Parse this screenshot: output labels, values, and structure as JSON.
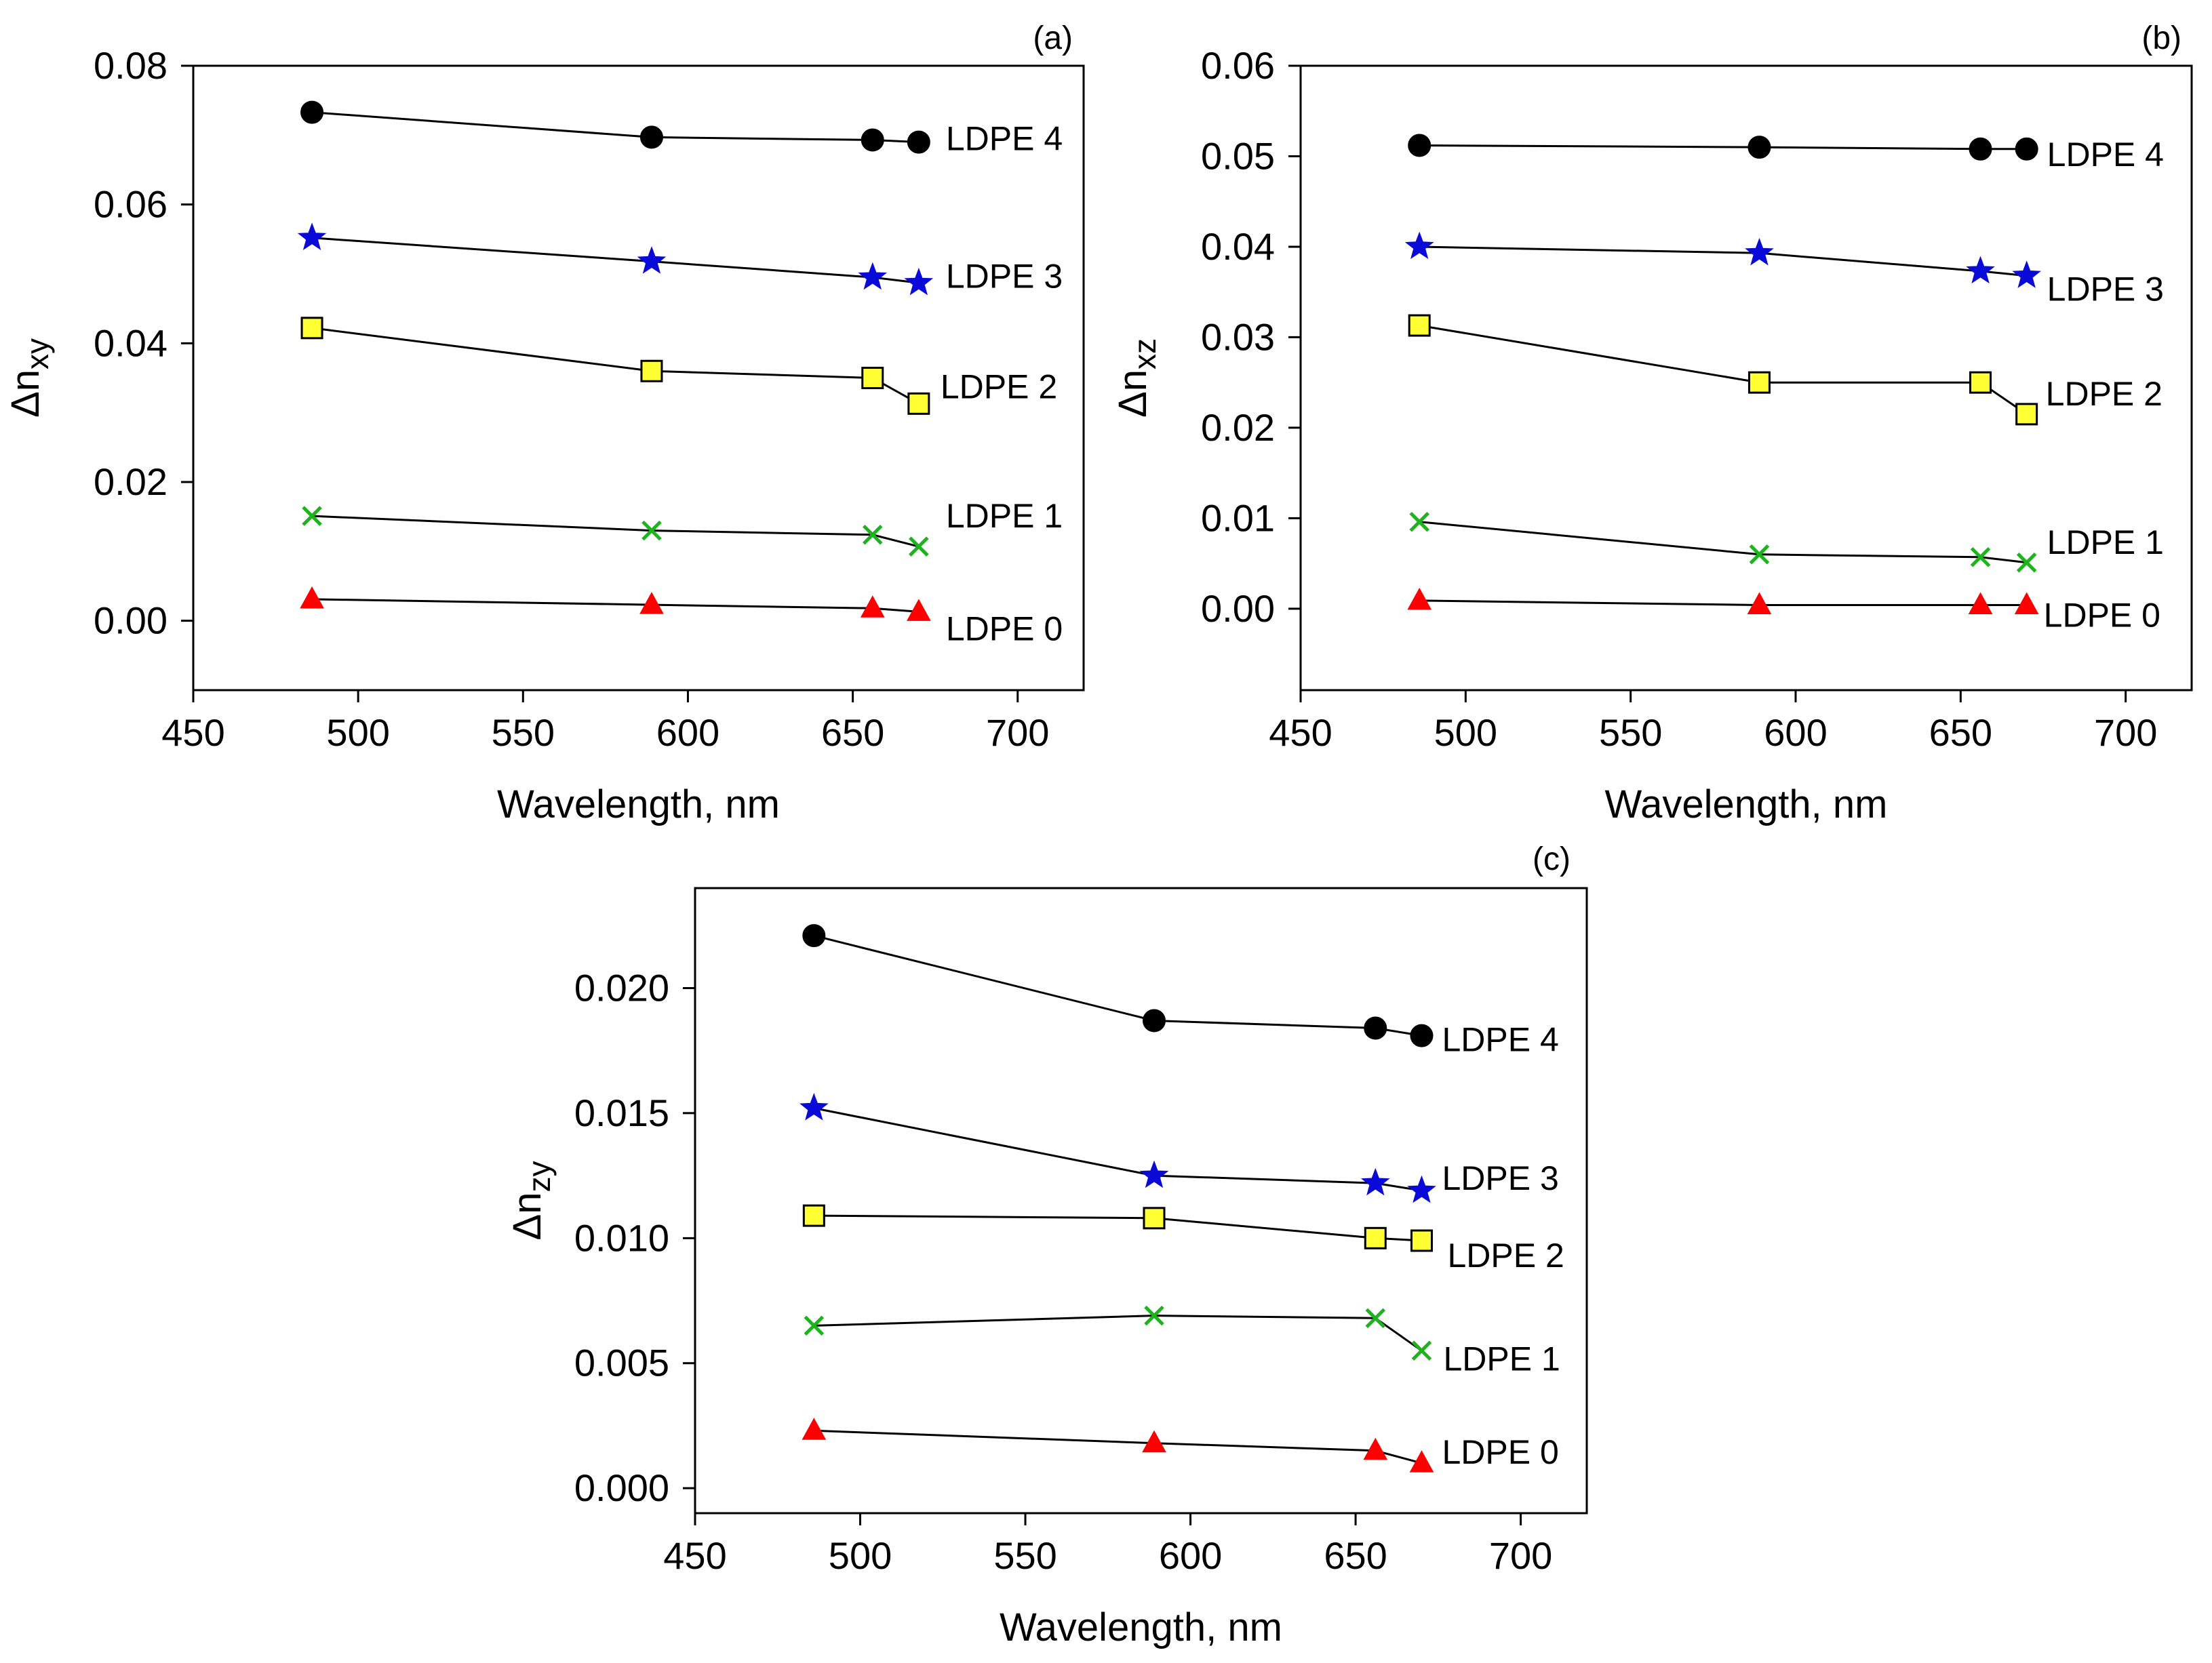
{
  "chart_data": [
    {
      "type": "line",
      "panel_label": "(a)",
      "xlabel": "Wavelength, nm",
      "ylabel_main": "Δn",
      "ylabel_sub": "xy",
      "xlim": [
        450,
        720
      ],
      "ylim": [
        -0.01,
        0.08
      ],
      "x_ticks": [
        450,
        500,
        550,
        600,
        650,
        700
      ],
      "x_tick_labels": [
        "450",
        "500",
        "550",
        "600",
        "650",
        "700"
      ],
      "y_ticks": [
        0,
        0.02,
        0.04,
        0.06,
        0.08
      ],
      "y_tick_labels": [
        "0.00",
        "0.02",
        "0.04",
        "0.06",
        "0.08"
      ],
      "x": [
        486,
        589,
        656,
        670
      ],
      "series": [
        {
          "name": "LDPE 4",
          "values": [
            0.0733,
            0.0697,
            0.0693,
            0.069
          ],
          "marker": "circle",
          "color": "#000000"
        },
        {
          "name": "LDPE 3",
          "values": [
            0.0552,
            0.0518,
            0.0495,
            0.0487
          ],
          "marker": "star",
          "color": "#0a0ad8"
        },
        {
          "name": "LDPE 2",
          "values": [
            0.0422,
            0.036,
            0.035,
            0.0313
          ],
          "marker": "square",
          "color": "#ffff33"
        },
        {
          "name": "LDPE 1",
          "values": [
            0.0151,
            0.013,
            0.0124,
            0.0107
          ],
          "marker": "cross",
          "color": "#1db31d"
        },
        {
          "name": "LDPE 0",
          "values": [
            0.0031,
            0.0023,
            0.0018,
            0.0013
          ],
          "marker": "triangle",
          "color": "#ff0000"
        }
      ]
    },
    {
      "type": "line",
      "panel_label": "(b)",
      "xlabel": "Wavelength, nm",
      "ylabel_main": "Δn",
      "ylabel_sub": "xz",
      "xlim": [
        450,
        720
      ],
      "ylim": [
        -0.009,
        0.06
      ],
      "x_ticks": [
        450,
        500,
        550,
        600,
        650,
        700
      ],
      "x_tick_labels": [
        "450",
        "500",
        "550",
        "600",
        "650",
        "700"
      ],
      "y_ticks": [
        0,
        0.01,
        0.02,
        0.03,
        0.04,
        0.05,
        0.06
      ],
      "y_tick_labels": [
        "0.00",
        "0.01",
        "0.02",
        "0.03",
        "0.04",
        "0.05",
        "0.06"
      ],
      "x": [
        486,
        589,
        656,
        670
      ],
      "series": [
        {
          "name": "LDPE 4",
          "values": [
            0.0512,
            0.051,
            0.0508,
            0.0508
          ],
          "marker": "circle",
          "color": "#000000"
        },
        {
          "name": "LDPE 3",
          "values": [
            0.04,
            0.0393,
            0.0373,
            0.0368
          ],
          "marker": "star",
          "color": "#0a0ad8"
        },
        {
          "name": "LDPE 2",
          "values": [
            0.0313,
            0.025,
            0.025,
            0.0215
          ],
          "marker": "square",
          "color": "#ffff33"
        },
        {
          "name": "LDPE 1",
          "values": [
            0.0096,
            0.006,
            0.0057,
            0.0051
          ],
          "marker": "cross",
          "color": "#1db31d"
        },
        {
          "name": "LDPE 0",
          "values": [
            0.0009,
            0.0004,
            0.0004,
            0.0004
          ],
          "marker": "triangle",
          "color": "#ff0000"
        }
      ]
    },
    {
      "type": "line",
      "panel_label": "(c)",
      "xlabel": "Wavelength, nm",
      "ylabel_main": "Δn",
      "ylabel_sub": "zy",
      "xlim": [
        450,
        720
      ],
      "ylim": [
        -0.001,
        0.024
      ],
      "x_ticks": [
        450,
        500,
        550,
        600,
        650,
        700
      ],
      "x_tick_labels": [
        "450",
        "500",
        "550",
        "600",
        "650",
        "700"
      ],
      "y_ticks": [
        0,
        0.005,
        0.01,
        0.015,
        0.02
      ],
      "y_tick_labels": [
        "0.000",
        "0.005",
        "0.010",
        "0.015",
        "0.020"
      ],
      "x": [
        486,
        589,
        656,
        670
      ],
      "series": [
        {
          "name": "LDPE 4",
          "values": [
            0.0221,
            0.0187,
            0.0184,
            0.0181
          ],
          "marker": "circle",
          "color": "#000000"
        },
        {
          "name": "LDPE 3",
          "values": [
            0.0152,
            0.0125,
            0.0122,
            0.0119
          ],
          "marker": "star",
          "color": "#0a0ad8"
        },
        {
          "name": "LDPE 2",
          "values": [
            0.0109,
            0.0108,
            0.01,
            0.0099
          ],
          "marker": "square",
          "color": "#ffff33"
        },
        {
          "name": "LDPE 1",
          "values": [
            0.0065,
            0.0069,
            0.0068,
            0.0055
          ],
          "marker": "cross",
          "color": "#1db31d"
        },
        {
          "name": "LDPE 0",
          "values": [
            0.0023,
            0.0018,
            0.0015,
            0.001
          ],
          "marker": "triangle",
          "color": "#ff0000"
        }
      ]
    }
  ]
}
